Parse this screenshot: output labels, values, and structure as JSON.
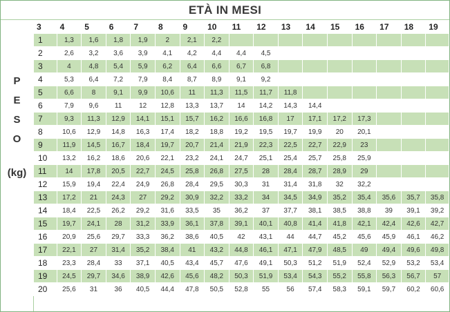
{
  "title": "ETÀ IN MESI",
  "side_label": {
    "letters": [
      "P",
      "E",
      "S",
      "O"
    ],
    "unit": "(kg)"
  },
  "header": [
    "3",
    "4",
    "5",
    "6",
    "7",
    "8",
    "9",
    "10",
    "11",
    "12",
    "13",
    "14",
    "15",
    "16",
    "17",
    "18",
    "19"
  ],
  "rows": [
    {
      "w": "1",
      "v": [
        "1,3",
        "1,6",
        "1,8",
        "1,9",
        "2",
        "2,1",
        "2,2"
      ]
    },
    {
      "w": "2",
      "v": [
        "2,6",
        "3,2",
        "3,6",
        "3,9",
        "4,1",
        "4,2",
        "4,4",
        "4,4",
        "4,5"
      ]
    },
    {
      "w": "3",
      "v": [
        "4",
        "4,8",
        "5,4",
        "5,9",
        "6,2",
        "6,4",
        "6,6",
        "6,7",
        "6,8"
      ]
    },
    {
      "w": "4",
      "v": [
        "5,3",
        "6,4",
        "7,2",
        "7,9",
        "8,4",
        "8,7",
        "8,9",
        "9,1",
        "9,2"
      ]
    },
    {
      "w": "5",
      "v": [
        "6,6",
        "8",
        "9,1",
        "9,9",
        "10,6",
        "11",
        "11,3",
        "11,5",
        "11,7",
        "11,8"
      ]
    },
    {
      "w": "6",
      "v": [
        "7,9",
        "9,6",
        "11",
        "12",
        "12,8",
        "13,3",
        "13,7",
        "14",
        "14,2",
        "14,3",
        "14,4"
      ]
    },
    {
      "w": "7",
      "v": [
        "9,3",
        "11,3",
        "12,9",
        "14,1",
        "15,1",
        "15,7",
        "16,2",
        "16,6",
        "16,8",
        "17",
        "17,1",
        "17,2",
        "17,3"
      ]
    },
    {
      "w": "8",
      "v": [
        "10,6",
        "12,9",
        "14,8",
        "16,3",
        "17,4",
        "18,2",
        "18,8",
        "19,2",
        "19,5",
        "19,7",
        "19,9",
        "20",
        "20,1"
      ]
    },
    {
      "w": "9",
      "v": [
        "11,9",
        "14,5",
        "16,7",
        "18,4",
        "19,7",
        "20,7",
        "21,4",
        "21,9",
        "22,3",
        "22,5",
        "22,7",
        "22,9",
        "23"
      ]
    },
    {
      "w": "10",
      "v": [
        "13,2",
        "16,2",
        "18,6",
        "20,6",
        "22,1",
        "23,2",
        "24,1",
        "24,7",
        "25,1",
        "25,4",
        "25,7",
        "25,8",
        "25,9"
      ]
    },
    {
      "w": "11",
      "v": [
        "14",
        "17,8",
        "20,5",
        "22,7",
        "24,5",
        "25,8",
        "26,8",
        "27,5",
        "28",
        "28,4",
        "28,7",
        "28,9",
        "29"
      ]
    },
    {
      "w": "12",
      "v": [
        "15,9",
        "19,4",
        "22,4",
        "24,9",
        "26,8",
        "28,4",
        "29,5",
        "30,3",
        "31",
        "31,4",
        "31,8",
        "32",
        "32,2"
      ]
    },
    {
      "w": "13",
      "v": [
        "17,2",
        "21",
        "24,3",
        "27",
        "29,2",
        "30,9",
        "32,2",
        "33,2",
        "34",
        "34,5",
        "34,9",
        "35,2",
        "35,4",
        "35,6",
        "35,7",
        "35,8"
      ]
    },
    {
      "w": "14",
      "v": [
        "18,4",
        "22,5",
        "26,2",
        "29,2",
        "31,6",
        "33,5",
        "35",
        "36,2",
        "37",
        "37,7",
        "38,1",
        "38,5",
        "38,8",
        "39",
        "39,1",
        "39,2"
      ]
    },
    {
      "w": "15",
      "v": [
        "19,7",
        "24,1",
        "28",
        "31,2",
        "33,9",
        "36,1",
        "37,8",
        "39,1",
        "40,1",
        "40,8",
        "41,4",
        "41,8",
        "42,1",
        "42,4",
        "42,6",
        "42,7"
      ]
    },
    {
      "w": "16",
      "v": [
        "20,9",
        "25,6",
        "29,7",
        "33,3",
        "36,2",
        "38,6",
        "40,5",
        "42",
        "43,1",
        "44",
        "44,7",
        "45,2",
        "45,6",
        "45,9",
        "46,1",
        "46,2"
      ]
    },
    {
      "w": "17",
      "v": [
        "22,1",
        "27",
        "31,4",
        "35,2",
        "38,4",
        "41",
        "43,2",
        "44,8",
        "46,1",
        "47,1",
        "47,9",
        "48,5",
        "49",
        "49,4",
        "49,6",
        "49,8"
      ]
    },
    {
      "w": "18",
      "v": [
        "23,3",
        "28,4",
        "33",
        "37,1",
        "40,5",
        "43,4",
        "45,7",
        "47,6",
        "49,1",
        "50,3",
        "51,2",
        "51,9",
        "52,4",
        "52,9",
        "53,2",
        "53,4"
      ]
    },
    {
      "w": "19",
      "v": [
        "24,5",
        "29,7",
        "34,6",
        "38,9",
        "42,6",
        "45,6",
        "48,2",
        "50,3",
        "51,9",
        "53,4",
        "54,3",
        "55,2",
        "55,8",
        "56,3",
        "56,7",
        "57"
      ]
    },
    {
      "w": "20",
      "v": [
        "25,6",
        "31",
        "36",
        "40,5",
        "44,4",
        "47,8",
        "50,5",
        "52,8",
        "55",
        "56",
        "57,4",
        "58,3",
        "59,1",
        "59,7",
        "60,2",
        "60,6"
      ]
    }
  ]
}
